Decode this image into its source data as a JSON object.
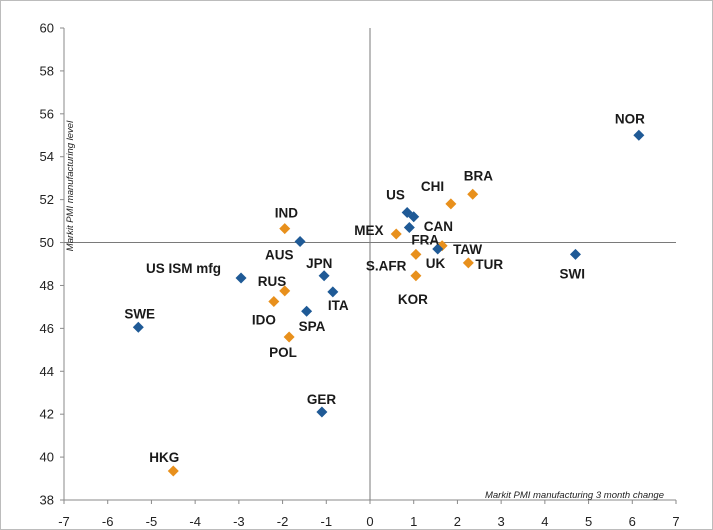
{
  "chart_data": {
    "type": "scatter",
    "title": "",
    "xlabel": "Markit PMI manufacturing 3 month change",
    "ylabel": "Markit PMI manufacturing level",
    "xlim": [
      -7,
      7
    ],
    "ylim": [
      38,
      60
    ],
    "x_ticks": [
      -7,
      -6,
      -5,
      -4,
      -3,
      -2,
      -1,
      0,
      1,
      2,
      3,
      4,
      5,
      6,
      7
    ],
    "y_ticks": [
      38,
      40,
      42,
      44,
      46,
      48,
      50,
      52,
      54,
      56,
      58,
      60
    ],
    "crosshair": {
      "x": 0,
      "y": 50
    },
    "grid": false,
    "legend": "none",
    "colors": {
      "blue": "#1f5a96",
      "orange": "#e8901c"
    },
    "points": [
      {
        "label": "NOR",
        "x": 6.15,
        "y": 55.0,
        "color": "blue"
      },
      {
        "label": "BRA",
        "x": 2.35,
        "y": 52.25,
        "color": "orange"
      },
      {
        "label": "CHI",
        "x": 1.85,
        "y": 51.8,
        "color": "orange"
      },
      {
        "label": "US",
        "x": 0.85,
        "y": 51.4,
        "color": "blue"
      },
      {
        "label": "CAN",
        "x": 1.0,
        "y": 51.2,
        "color": "blue"
      },
      {
        "label": "MEX",
        "x": 0.6,
        "y": 50.4,
        "color": "orange"
      },
      {
        "label": "FRA",
        "x": 0.9,
        "y": 50.7,
        "color": "blue"
      },
      {
        "label": "TAW",
        "x": 1.65,
        "y": 49.85,
        "color": "orange"
      },
      {
        "label": "UK",
        "x": 1.55,
        "y": 49.7,
        "color": "blue"
      },
      {
        "label": "S.AFR",
        "x": 1.05,
        "y": 49.45,
        "color": "orange"
      },
      {
        "label": "KOR",
        "x": 1.05,
        "y": 48.45,
        "color": "orange"
      },
      {
        "label": "TUR",
        "x": 2.25,
        "y": 49.05,
        "color": "orange"
      },
      {
        "label": "SWI",
        "x": 4.7,
        "y": 49.45,
        "color": "blue"
      },
      {
        "label": "IND",
        "x": -1.95,
        "y": 50.65,
        "color": "orange"
      },
      {
        "label": "AUS",
        "x": -1.6,
        "y": 50.05,
        "color": "blue"
      },
      {
        "label": "JPN",
        "x": -1.05,
        "y": 48.45,
        "color": "blue"
      },
      {
        "label": "US ISM mfg",
        "x": -2.95,
        "y": 48.35,
        "color": "blue"
      },
      {
        "label": "RUS",
        "x": -1.95,
        "y": 47.75,
        "color": "orange"
      },
      {
        "label": "IDO",
        "x": -2.2,
        "y": 47.25,
        "color": "orange"
      },
      {
        "label": "ITA",
        "x": -0.85,
        "y": 47.7,
        "color": "blue"
      },
      {
        "label": "SPA",
        "x": -1.45,
        "y": 46.8,
        "color": "blue"
      },
      {
        "label": "POL",
        "x": -1.85,
        "y": 45.6,
        "color": "orange"
      },
      {
        "label": "SWE",
        "x": -5.3,
        "y": 46.05,
        "color": "blue"
      },
      {
        "label": "GER",
        "x": -1.1,
        "y": 42.1,
        "color": "blue"
      },
      {
        "label": "HKG",
        "x": -4.5,
        "y": 39.35,
        "color": "orange"
      }
    ]
  }
}
